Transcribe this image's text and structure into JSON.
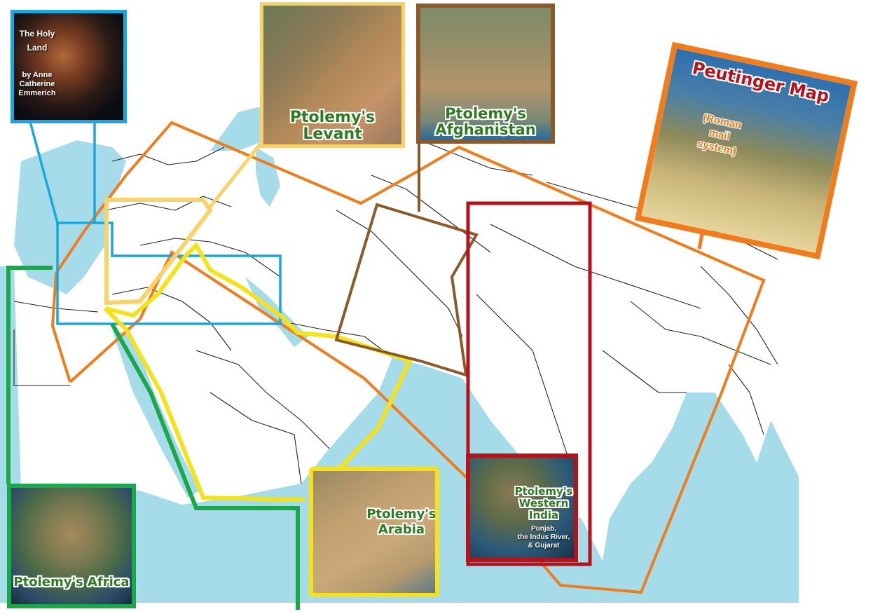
{
  "insets": {
    "holy_land": {
      "title_line1": "The Holy",
      "title_line2": "Land",
      "author": "by Anne Catherine Emmerich",
      "border_color": "#1aa7e0"
    },
    "levant": {
      "title_line1": "Ptolemy's",
      "title_line2": "Levant",
      "border_color": "#f7d36a"
    },
    "afghanistan": {
      "title_line1": "Ptolemy's",
      "title_line2": "Afghanistan",
      "border_color": "#8a5a2a"
    },
    "peutinger": {
      "title": "Peutinger Map",
      "subtitle_line1": "(Roman",
      "subtitle_line2": "mail",
      "subtitle_line3": "system)",
      "border_color": "#f07c1c"
    },
    "africa": {
      "title": "Ptolemy's Africa",
      "border_color": "#1aa84a"
    },
    "arabia": {
      "title_line1": "Ptolemy's",
      "title_line2": "Arabia",
      "border_color": "#f5e21a"
    },
    "western_india": {
      "title_line1": "Ptolemy's",
      "title_line2": "Western",
      "title_line3": "India",
      "sub_line1": "Punjab,",
      "sub_line2": "the Indus River,",
      "sub_line3": "& Gujarat",
      "border_color": "#b5121b"
    }
  },
  "map": {
    "water_color": "#a6dbe9",
    "land_color": "#ffffff"
  }
}
